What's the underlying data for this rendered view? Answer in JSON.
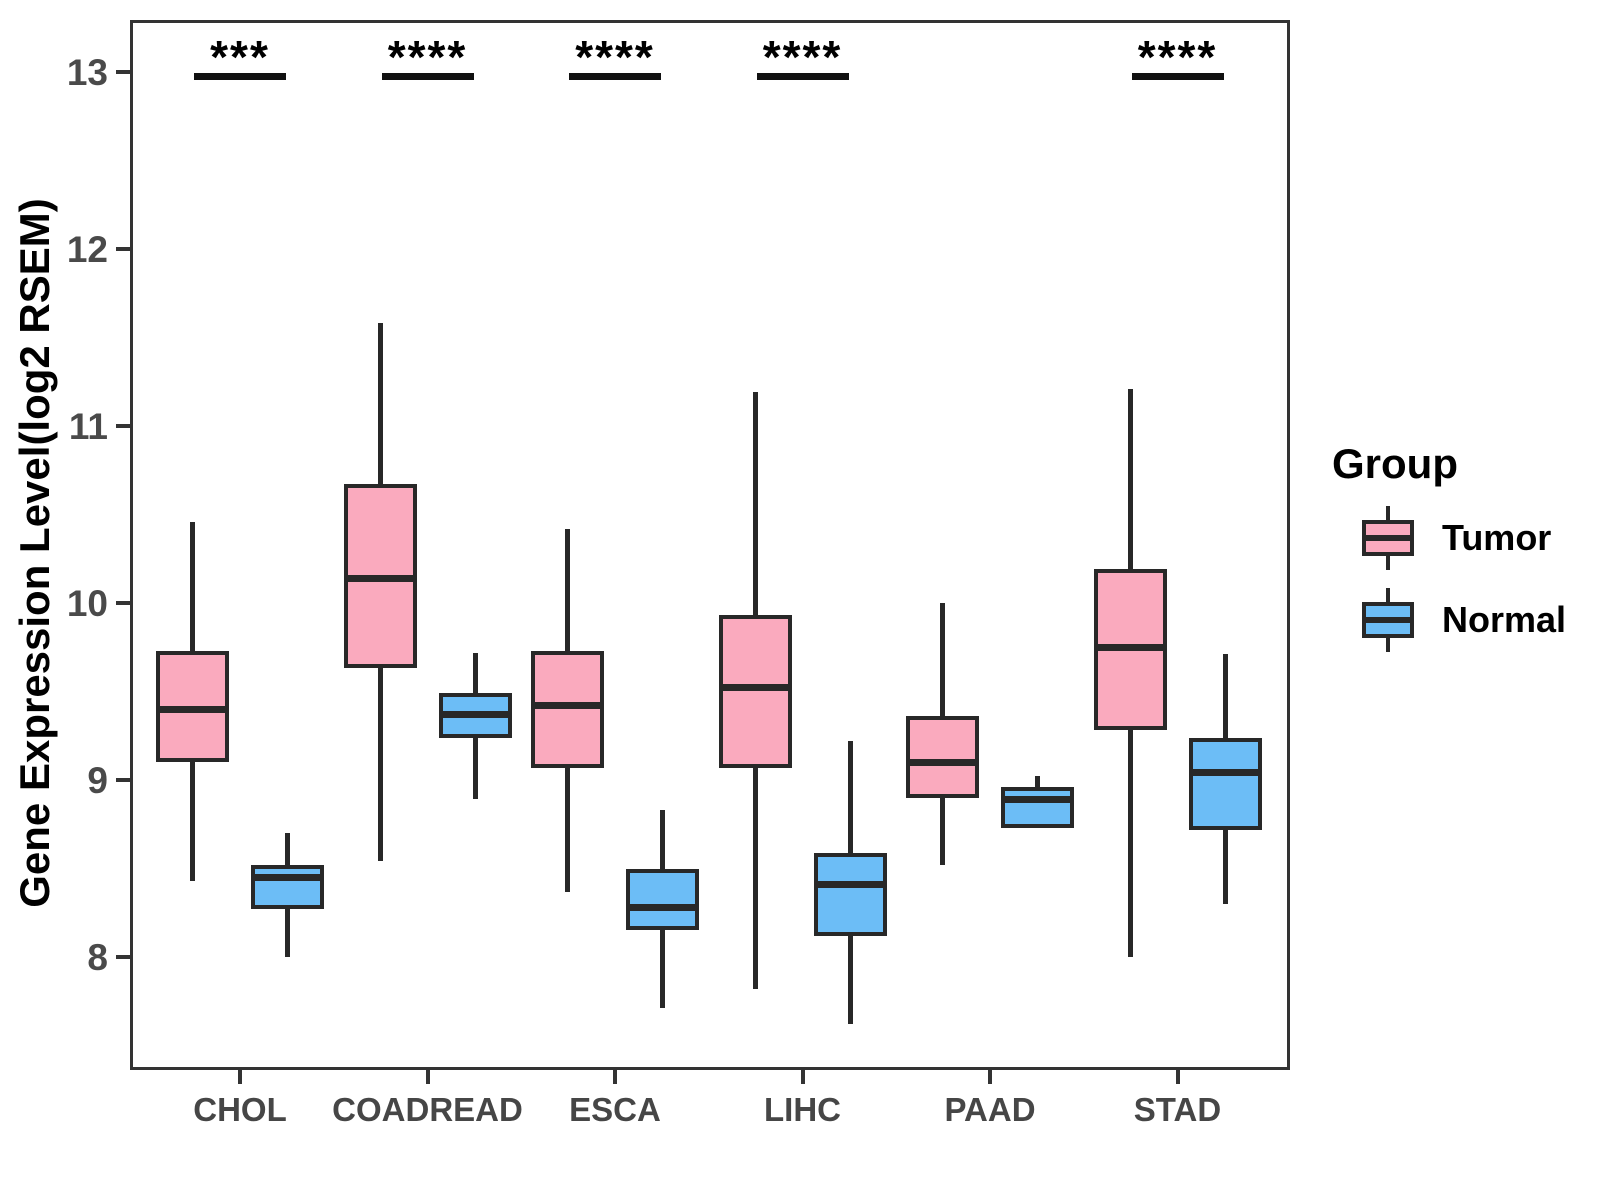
{
  "chart_data": {
    "type": "boxplot",
    "title": "",
    "xlabel": "",
    "ylabel": "Gene Expression Level(log2 RSEM)",
    "ylim": [
      7.4,
      13.3
    ],
    "yticks": [
      8,
      9,
      10,
      11,
      12,
      13
    ],
    "grid": "off",
    "categories": [
      "CHOL",
      "COADREAD",
      "ESCA",
      "LIHC",
      "PAAD",
      "STAD"
    ],
    "legend": {
      "title": "Group",
      "position": "right",
      "entries": [
        {
          "label": "Tumor",
          "color": "#FAAABE"
        },
        {
          "label": "Normal",
          "color": "#6CBDF6"
        }
      ]
    },
    "significance_markers": [
      {
        "category": "CHOL",
        "label": "***"
      },
      {
        "category": "COADREAD",
        "label": "****"
      },
      {
        "category": "ESCA",
        "label": "****"
      },
      {
        "category": "LIHC",
        "label": "****"
      },
      {
        "category": "STAD",
        "label": "****"
      }
    ],
    "series": [
      {
        "name": "Tumor",
        "color": "#FAAABE",
        "boxes": [
          {
            "category": "CHOL",
            "whisker_low": 8.43,
            "q1": 9.1,
            "median": 9.4,
            "q3": 9.73,
            "whisker_high": 10.46
          },
          {
            "category": "COADREAD",
            "whisker_low": 8.54,
            "q1": 9.63,
            "median": 10.14,
            "q3": 10.67,
            "whisker_high": 11.58
          },
          {
            "category": "ESCA",
            "whisker_low": 8.37,
            "q1": 9.07,
            "median": 9.42,
            "q3": 9.73,
            "whisker_high": 10.42
          },
          {
            "category": "LIHC",
            "whisker_low": 7.82,
            "q1": 9.07,
            "median": 9.52,
            "q3": 9.93,
            "whisker_high": 11.19
          },
          {
            "category": "PAAD",
            "whisker_low": 8.52,
            "q1": 8.9,
            "median": 9.1,
            "q3": 9.36,
            "whisker_high": 10.0
          },
          {
            "category": "STAD",
            "whisker_low": 8.0,
            "q1": 9.28,
            "median": 9.75,
            "q3": 10.19,
            "whisker_high": 11.21
          }
        ]
      },
      {
        "name": "Normal",
        "color": "#6CBDF6",
        "boxes": [
          {
            "category": "CHOL",
            "whisker_low": 8.0,
            "q1": 8.27,
            "median": 8.45,
            "q3": 8.52,
            "whisker_high": 8.7
          },
          {
            "category": "COADREAD",
            "whisker_low": 8.89,
            "q1": 9.24,
            "median": 9.37,
            "q3": 9.49,
            "whisker_high": 9.72
          },
          {
            "category": "ESCA",
            "whisker_low": 7.71,
            "q1": 8.15,
            "median": 8.28,
            "q3": 8.5,
            "whisker_high": 8.83
          },
          {
            "category": "LIHC",
            "whisker_low": 7.62,
            "q1": 8.12,
            "median": 8.41,
            "q3": 8.59,
            "whisker_high": 9.22
          },
          {
            "category": "PAAD",
            "whisker_low": 8.73,
            "q1": 8.73,
            "median": 8.89,
            "q3": 8.96,
            "whisker_high": 9.02
          },
          {
            "category": "STAD",
            "whisker_low": 8.3,
            "q1": 8.72,
            "median": 9.04,
            "q3": 9.24,
            "whisker_high": 9.71
          }
        ]
      }
    ]
  }
}
